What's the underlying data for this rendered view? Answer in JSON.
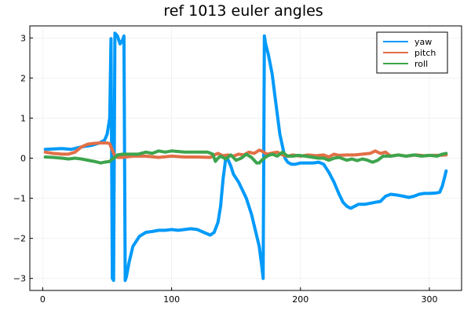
{
  "chart_data": {
    "type": "line",
    "title": "ref 1013 euler angles",
    "xlabel": "",
    "ylabel": "",
    "xlim": [
      -10,
      325
    ],
    "ylim": [
      -3.3,
      3.3
    ],
    "x_ticks": [
      0,
      100,
      200,
      300
    ],
    "y_ticks": [
      -3,
      -2,
      -1,
      0,
      1,
      2,
      3
    ],
    "x_tick_labels": [
      "0",
      "100",
      "200",
      "300"
    ],
    "y_tick_labels": [
      "−3",
      "−2",
      "−1",
      "0",
      "1",
      "2",
      "3"
    ],
    "grid": true,
    "legend_position": "top-right",
    "series": [
      {
        "name": "yaw",
        "color": "#009af9",
        "points": [
          [
            2,
            0.22
          ],
          [
            8,
            0.23
          ],
          [
            15,
            0.24
          ],
          [
            22,
            0.22
          ],
          [
            30,
            0.28
          ],
          [
            38,
            0.32
          ],
          [
            44,
            0.38
          ],
          [
            48,
            0.45
          ],
          [
            50,
            0.6
          ],
          [
            52,
            1.0
          ],
          [
            53,
            2.98
          ],
          [
            54,
            -3.0
          ],
          [
            55,
            -3.05
          ],
          [
            56,
            3.12
          ],
          [
            58,
            3.05
          ],
          [
            60,
            2.85
          ],
          [
            62,
            2.95
          ],
          [
            63,
            3.05
          ],
          [
            64,
            -3.05
          ],
          [
            65,
            -2.95
          ],
          [
            67,
            -2.6
          ],
          [
            70,
            -2.2
          ],
          [
            75,
            -1.95
          ],
          [
            80,
            -1.85
          ],
          [
            85,
            -1.83
          ],
          [
            90,
            -1.8
          ],
          [
            95,
            -1.8
          ],
          [
            100,
            -1.78
          ],
          [
            105,
            -1.8
          ],
          [
            110,
            -1.78
          ],
          [
            115,
            -1.76
          ],
          [
            120,
            -1.78
          ],
          [
            125,
            -1.85
          ],
          [
            130,
            -1.92
          ],
          [
            133,
            -1.85
          ],
          [
            136,
            -1.6
          ],
          [
            138,
            -1.2
          ],
          [
            140,
            -0.5
          ],
          [
            142,
            0.0
          ],
          [
            144,
            -0.05
          ],
          [
            146,
            -0.2
          ],
          [
            148,
            -0.4
          ],
          [
            150,
            -0.5
          ],
          [
            152,
            -0.6
          ],
          [
            155,
            -0.8
          ],
          [
            158,
            -1.0
          ],
          [
            162,
            -1.4
          ],
          [
            165,
            -1.8
          ],
          [
            168,
            -2.2
          ],
          [
            170,
            -2.7
          ],
          [
            171,
            -3.0
          ],
          [
            172,
            3.05
          ],
          [
            173,
            2.85
          ],
          [
            175,
            2.6
          ],
          [
            178,
            2.1
          ],
          [
            180,
            1.6
          ],
          [
            182,
            1.1
          ],
          [
            184,
            0.6
          ],
          [
            186,
            0.3
          ],
          [
            188,
            0.0
          ],
          [
            190,
            -0.1
          ],
          [
            193,
            -0.15
          ],
          [
            196,
            -0.15
          ],
          [
            200,
            -0.12
          ],
          [
            205,
            -0.12
          ],
          [
            210,
            -0.12
          ],
          [
            214,
            -0.1
          ],
          [
            218,
            -0.15
          ],
          [
            222,
            -0.35
          ],
          [
            226,
            -0.6
          ],
          [
            230,
            -0.9
          ],
          [
            233,
            -1.1
          ],
          [
            236,
            -1.2
          ],
          [
            239,
            -1.25
          ],
          [
            242,
            -1.2
          ],
          [
            245,
            -1.15
          ],
          [
            250,
            -1.15
          ],
          [
            255,
            -1.12
          ],
          [
            258,
            -1.1
          ],
          [
            262,
            -1.08
          ],
          [
            266,
            -0.95
          ],
          [
            270,
            -0.9
          ],
          [
            275,
            -0.92
          ],
          [
            280,
            -0.95
          ],
          [
            284,
            -0.98
          ],
          [
            288,
            -0.95
          ],
          [
            292,
            -0.9
          ],
          [
            296,
            -0.88
          ],
          [
            300,
            -0.88
          ],
          [
            305,
            -0.87
          ],
          [
            308,
            -0.85
          ],
          [
            310,
            -0.7
          ],
          [
            312,
            -0.45
          ],
          [
            313,
            -0.32
          ]
        ]
      },
      {
        "name": "pitch",
        "color": "#e26f46",
        "points": [
          [
            2,
            0.15
          ],
          [
            8,
            0.12
          ],
          [
            15,
            0.1
          ],
          [
            20,
            0.1
          ],
          [
            25,
            0.15
          ],
          [
            30,
            0.28
          ],
          [
            35,
            0.35
          ],
          [
            40,
            0.37
          ],
          [
            45,
            0.38
          ],
          [
            50,
            0.38
          ],
          [
            52,
            0.36
          ],
          [
            54,
            0.2
          ],
          [
            56,
            0.05
          ],
          [
            58,
            0.02
          ],
          [
            62,
            0.02
          ],
          [
            70,
            0.05
          ],
          [
            80,
            0.05
          ],
          [
            90,
            0.02
          ],
          [
            100,
            0.05
          ],
          [
            110,
            0.03
          ],
          [
            120,
            0.03
          ],
          [
            130,
            0.02
          ],
          [
            133,
            0.08
          ],
          [
            136,
            0.12
          ],
          [
            140,
            0.06
          ],
          [
            144,
            0.08
          ],
          [
            148,
            0.05
          ],
          [
            152,
            0.1
          ],
          [
            156,
            0.08
          ],
          [
            160,
            0.15
          ],
          [
            164,
            0.12
          ],
          [
            168,
            0.2
          ],
          [
            170,
            0.18
          ],
          [
            174,
            0.1
          ],
          [
            178,
            0.13
          ],
          [
            182,
            0.15
          ],
          [
            186,
            0.08
          ],
          [
            190,
            0.05
          ],
          [
            194,
            0.08
          ],
          [
            200,
            0.05
          ],
          [
            206,
            0.08
          ],
          [
            212,
            0.06
          ],
          [
            218,
            0.08
          ],
          [
            222,
            0.03
          ],
          [
            226,
            0.1
          ],
          [
            230,
            0.07
          ],
          [
            236,
            0.08
          ],
          [
            242,
            0.08
          ],
          [
            248,
            0.1
          ],
          [
            254,
            0.12
          ],
          [
            258,
            0.18
          ],
          [
            262,
            0.12
          ],
          [
            266,
            0.15
          ],
          [
            270,
            0.05
          ],
          [
            276,
            0.08
          ],
          [
            282,
            0.05
          ],
          [
            290,
            0.08
          ],
          [
            296,
            0.06
          ],
          [
            302,
            0.07
          ],
          [
            308,
            0.07
          ],
          [
            313,
            0.08
          ]
        ]
      },
      {
        "name": "roll",
        "color": "#3da44d",
        "points": [
          [
            2,
            0.03
          ],
          [
            8,
            0.02
          ],
          [
            15,
            0.0
          ],
          [
            20,
            -0.02
          ],
          [
            25,
            0.0
          ],
          [
            30,
            -0.02
          ],
          [
            35,
            -0.05
          ],
          [
            40,
            -0.08
          ],
          [
            45,
            -0.12
          ],
          [
            48,
            -0.1
          ],
          [
            52,
            -0.08
          ],
          [
            54,
            -0.02
          ],
          [
            56,
            0.02
          ],
          [
            58,
            0.08
          ],
          [
            62,
            0.1
          ],
          [
            68,
            0.1
          ],
          [
            74,
            0.1
          ],
          [
            80,
            0.15
          ],
          [
            85,
            0.12
          ],
          [
            90,
            0.18
          ],
          [
            95,
            0.15
          ],
          [
            100,
            0.18
          ],
          [
            110,
            0.15
          ],
          [
            120,
            0.15
          ],
          [
            128,
            0.15
          ],
          [
            132,
            0.1
          ],
          [
            134,
            -0.08
          ],
          [
            136,
            0.0
          ],
          [
            138,
            0.05
          ],
          [
            142,
            -0.02
          ],
          [
            146,
            0.08
          ],
          [
            150,
            -0.05
          ],
          [
            154,
            0.0
          ],
          [
            158,
            0.1
          ],
          [
            162,
            0.02
          ],
          [
            166,
            -0.12
          ],
          [
            168,
            -0.12
          ],
          [
            170,
            -0.05
          ],
          [
            174,
            0.05
          ],
          [
            178,
            0.1
          ],
          [
            182,
            0.05
          ],
          [
            186,
            0.15
          ],
          [
            190,
            0.05
          ],
          [
            194,
            0.05
          ],
          [
            198,
            0.07
          ],
          [
            204,
            0.05
          ],
          [
            210,
            0.02
          ],
          [
            214,
            0.0
          ],
          [
            218,
            0.0
          ],
          [
            222,
            -0.05
          ],
          [
            226,
            0.0
          ],
          [
            230,
            0.02
          ],
          [
            236,
            -0.05
          ],
          [
            240,
            -0.02
          ],
          [
            244,
            -0.06
          ],
          [
            248,
            -0.02
          ],
          [
            252,
            -0.05
          ],
          [
            256,
            -0.1
          ],
          [
            260,
            -0.05
          ],
          [
            264,
            0.05
          ],
          [
            270,
            0.05
          ],
          [
            276,
            0.08
          ],
          [
            282,
            0.05
          ],
          [
            288,
            0.08
          ],
          [
            294,
            0.05
          ],
          [
            300,
            0.07
          ],
          [
            306,
            0.05
          ],
          [
            310,
            0.1
          ],
          [
            313,
            0.12
          ]
        ]
      }
    ]
  }
}
